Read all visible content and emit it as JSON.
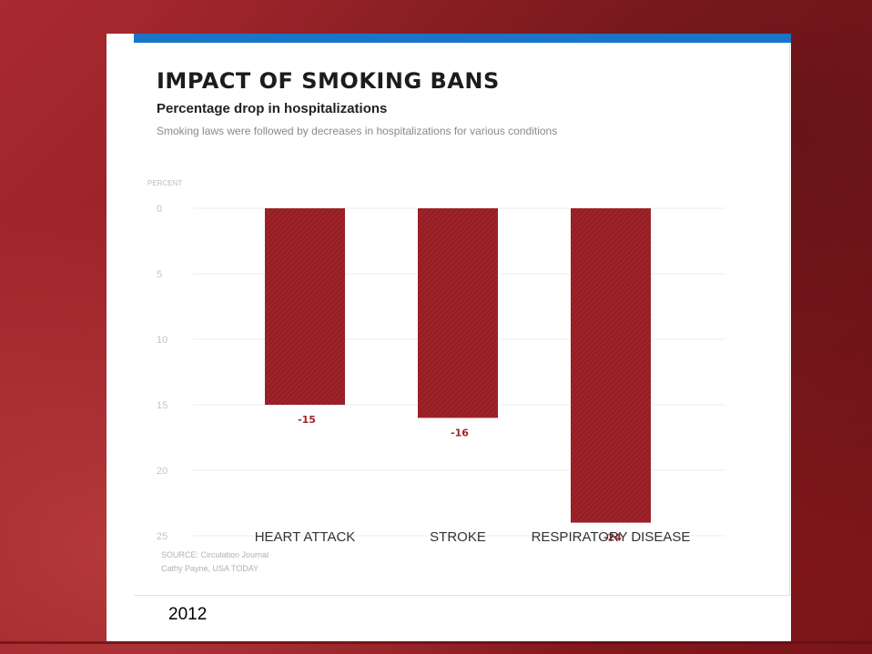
{
  "graphic": {
    "title": "IMPACT OF SMOKING BANS",
    "subtitle": "Percentage drop in hospitalizations",
    "description": "Smoking laws were followed by decreases in hospitalizations for various conditions",
    "source_line": "SOURCE: Circulation Journal",
    "credit_line": "Cathy Payne, USA TODAY"
  },
  "year_label": "2012",
  "colors": {
    "bar": "#9e2329",
    "value_label": "#9e2329",
    "accent_bar": "#1a75c9",
    "frame": "#8f1d22"
  },
  "chart_data": {
    "type": "bar",
    "title": "IMPACT OF SMOKING BANS",
    "subtitle": "Percentage drop in hospitalizations",
    "ylabel": "PERCENT",
    "xlabel": "",
    "categories": [
      "HEART ATTACK",
      "STROKE",
      "RESPIRATORY DISEASE"
    ],
    "values": [
      15,
      16,
      24
    ],
    "value_labels": [
      "-15",
      "-16",
      "-24"
    ],
    "yticks": [
      0,
      5,
      10,
      15,
      20,
      25
    ],
    "ylim": [
      0,
      25
    ],
    "y_inverted": true,
    "grid": true,
    "legend": "none"
  }
}
